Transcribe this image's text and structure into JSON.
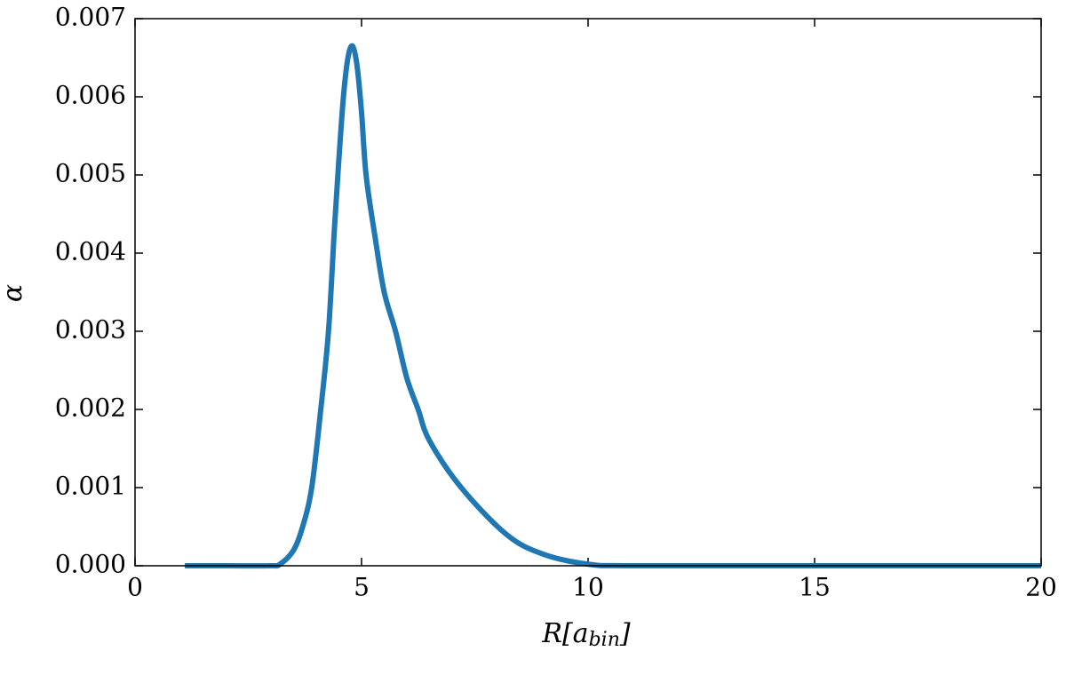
{
  "chart_data": {
    "type": "line",
    "xlabel": [
      "R[a",
      "bin",
      "]"
    ],
    "ylabel": "α",
    "x": [
      1.1,
      2,
      3,
      3.2,
      3.5,
      3.7,
      3.9,
      4.1,
      4.27,
      4.4,
      4.5,
      4.6,
      4.7,
      4.8,
      4.9,
      5.0,
      5.1,
      5.3,
      5.5,
      5.75,
      6.0,
      6.25,
      6.5,
      7.2,
      8.2,
      9,
      10,
      11,
      15,
      20
    ],
    "series": [
      {
        "color": "#1f77b4",
        "values": [
          0,
          0,
          0,
          2e-05,
          0.0002,
          0.0005,
          0.001,
          0.002,
          0.003,
          0.0043,
          0.0052,
          0.006,
          0.0065,
          0.00665,
          0.0064,
          0.0058,
          0.005,
          0.0042,
          0.0035,
          0.003,
          0.0024,
          0.002,
          0.0016,
          0.001,
          0.0004,
          0.00015,
          2e-05,
          0,
          0,
          0
        ]
      }
    ],
    "xlim": [
      0,
      20
    ],
    "xticks": [
      0,
      5,
      10,
      15,
      20
    ],
    "ylim": [
      0,
      0.007
    ],
    "yticks": [
      {
        "value": 0,
        "label": "0.000"
      },
      {
        "value": 0.001,
        "label": "0.001"
      },
      {
        "value": 0.002,
        "label": "0.002"
      },
      {
        "value": 0.003,
        "label": "0.003"
      },
      {
        "value": 0.004,
        "label": "0.004"
      },
      {
        "value": 0.005,
        "label": "0.005"
      },
      {
        "value": 0.006,
        "label": "0.006"
      },
      {
        "value": 0.007,
        "label": "0.007"
      }
    ],
    "grid": false
  }
}
